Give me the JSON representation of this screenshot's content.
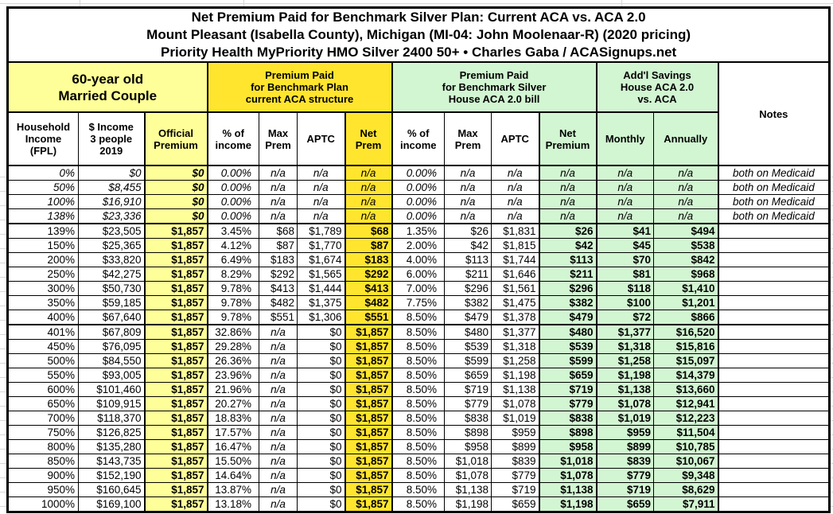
{
  "title": {
    "line1": "Net Premium Paid for Benchmark Silver Plan: Current ACA vs. ACA 2.0",
    "line2": "Mount Pleasant (Isabella County), Michigan (MI-04: John Moolenaar-R) (2020 pricing)",
    "line3": "Priority Health MyPriority HMO Silver 2400 50+ • Charles Gaba / ACASignups.net"
  },
  "groups": {
    "household": "60-year old\nMarried Couple",
    "aca_current": "Premium Paid\nfor Benchmark Plan\ncurrent ACA structure",
    "aca_20": "Premium Paid\nfor Benchmark Silver\nHouse ACA 2.0 bill",
    "savings": "Add'l Savings\nHouse ACA 2.0\nvs. ACA",
    "notes": "Notes"
  },
  "columns": [
    {
      "key": "fpl",
      "label": "Household\nIncome\n(FPL)"
    },
    {
      "key": "income",
      "label": "$ Income\n3 people\n2019"
    },
    {
      "key": "official_premium",
      "label": "Official\nPremium"
    },
    {
      "key": "aca_pct_income",
      "label": "% of\nincome"
    },
    {
      "key": "aca_max_prem",
      "label": "Max\nPrem"
    },
    {
      "key": "aca_aptc",
      "label": "APTC"
    },
    {
      "key": "aca_net_prem",
      "label": "Net\nPrem"
    },
    {
      "key": "aca20_pct_income",
      "label": "% of\nincome"
    },
    {
      "key": "aca20_max_prem",
      "label": "Max\nPrem"
    },
    {
      "key": "aca20_aptc",
      "label": "APTC"
    },
    {
      "key": "aca20_net_premium",
      "label": "Net\nPremium"
    },
    {
      "key": "savings_monthly",
      "label": "Monthly"
    },
    {
      "key": "savings_annually",
      "label": "Annually"
    },
    {
      "key": "notes",
      "label": "Notes"
    }
  ],
  "rows": [
    {
      "medicaid": true,
      "cells": [
        "0%",
        "$0",
        "$0",
        "0.00%",
        "n/a",
        "n/a",
        "n/a",
        "0.00%",
        "n/a",
        "n/a",
        "n/a",
        "n/a",
        "n/a",
        "both on Medicaid"
      ]
    },
    {
      "medicaid": true,
      "cells": [
        "50%",
        "$8,455",
        "$0",
        "0.00%",
        "n/a",
        "n/a",
        "n/a",
        "0.00%",
        "n/a",
        "n/a",
        "n/a",
        "n/a",
        "n/a",
        "both on Medicaid"
      ]
    },
    {
      "medicaid": true,
      "cells": [
        "100%",
        "$16,910",
        "$0",
        "0.00%",
        "n/a",
        "n/a",
        "n/a",
        "0.00%",
        "n/a",
        "n/a",
        "n/a",
        "n/a",
        "n/a",
        "both on Medicaid"
      ]
    },
    {
      "medicaid": true,
      "cells": [
        "138%",
        "$23,336",
        "$0",
        "0.00%",
        "n/a",
        "n/a",
        "n/a",
        "0.00%",
        "n/a",
        "n/a",
        "n/a",
        "n/a",
        "n/a",
        "both on Medicaid"
      ]
    },
    {
      "medicaid": false,
      "cells": [
        "139%",
        "$23,505",
        "$1,857",
        "3.45%",
        "$68",
        "$1,789",
        "$68",
        "1.35%",
        "$26",
        "$1,831",
        "$26",
        "$41",
        "$494",
        ""
      ]
    },
    {
      "medicaid": false,
      "cells": [
        "150%",
        "$25,365",
        "$1,857",
        "4.12%",
        "$87",
        "$1,770",
        "$87",
        "2.00%",
        "$42",
        "$1,815",
        "$42",
        "$45",
        "$538",
        ""
      ]
    },
    {
      "medicaid": false,
      "cells": [
        "200%",
        "$33,820",
        "$1,857",
        "6.49%",
        "$183",
        "$1,674",
        "$183",
        "4.00%",
        "$113",
        "$1,744",
        "$113",
        "$70",
        "$842",
        ""
      ]
    },
    {
      "medicaid": false,
      "cells": [
        "250%",
        "$42,275",
        "$1,857",
        "8.29%",
        "$292",
        "$1,565",
        "$292",
        "6.00%",
        "$211",
        "$1,646",
        "$211",
        "$81",
        "$968",
        ""
      ]
    },
    {
      "medicaid": false,
      "cells": [
        "300%",
        "$50,730",
        "$1,857",
        "9.78%",
        "$413",
        "$1,444",
        "$413",
        "7.00%",
        "$296",
        "$1,561",
        "$296",
        "$118",
        "$1,410",
        ""
      ]
    },
    {
      "medicaid": false,
      "cells": [
        "350%",
        "$59,185",
        "$1,857",
        "9.78%",
        "$482",
        "$1,375",
        "$482",
        "7.75%",
        "$382",
        "$1,475",
        "$382",
        "$100",
        "$1,201",
        ""
      ]
    },
    {
      "medicaid": false,
      "cells": [
        "400%",
        "$67,640",
        "$1,857",
        "9.78%",
        "$551",
        "$1,306",
        "$551",
        "8.50%",
        "$479",
        "$1,378",
        "$479",
        "$72",
        "$866",
        ""
      ]
    },
    {
      "medicaid": false,
      "cells": [
        "401%",
        "$67,809",
        "$1,857",
        "32.86%",
        "n/a",
        "$0",
        "$1,857",
        "8.50%",
        "$480",
        "$1,377",
        "$480",
        "$1,377",
        "$16,520",
        ""
      ]
    },
    {
      "medicaid": false,
      "cells": [
        "450%",
        "$76,095",
        "$1,857",
        "29.28%",
        "n/a",
        "$0",
        "$1,857",
        "8.50%",
        "$539",
        "$1,318",
        "$539",
        "$1,318",
        "$15,816",
        ""
      ]
    },
    {
      "medicaid": false,
      "cells": [
        "500%",
        "$84,550",
        "$1,857",
        "26.36%",
        "n/a",
        "$0",
        "$1,857",
        "8.50%",
        "$599",
        "$1,258",
        "$599",
        "$1,258",
        "$15,097",
        ""
      ]
    },
    {
      "medicaid": false,
      "cells": [
        "550%",
        "$93,005",
        "$1,857",
        "23.96%",
        "n/a",
        "$0",
        "$1,857",
        "8.50%",
        "$659",
        "$1,198",
        "$659",
        "$1,198",
        "$14,379",
        ""
      ]
    },
    {
      "medicaid": false,
      "cells": [
        "600%",
        "$101,460",
        "$1,857",
        "21.96%",
        "n/a",
        "$0",
        "$1,857",
        "8.50%",
        "$719",
        "$1,138",
        "$719",
        "$1,138",
        "$13,660",
        ""
      ]
    },
    {
      "medicaid": false,
      "cells": [
        "650%",
        "$109,915",
        "$1,857",
        "20.27%",
        "n/a",
        "$0",
        "$1,857",
        "8.50%",
        "$779",
        "$1,078",
        "$779",
        "$1,078",
        "$12,941",
        ""
      ]
    },
    {
      "medicaid": false,
      "cells": [
        "700%",
        "$118,370",
        "$1,857",
        "18.83%",
        "n/a",
        "$0",
        "$1,857",
        "8.50%",
        "$838",
        "$1,019",
        "$838",
        "$1,019",
        "$12,223",
        ""
      ]
    },
    {
      "medicaid": false,
      "cells": [
        "750%",
        "$126,825",
        "$1,857",
        "17.57%",
        "n/a",
        "$0",
        "$1,857",
        "8.50%",
        "$898",
        "$959",
        "$898",
        "$959",
        "$11,504",
        ""
      ]
    },
    {
      "medicaid": false,
      "cells": [
        "800%",
        "$135,280",
        "$1,857",
        "16.47%",
        "n/a",
        "$0",
        "$1,857",
        "8.50%",
        "$958",
        "$899",
        "$958",
        "$899",
        "$10,785",
        ""
      ]
    },
    {
      "medicaid": false,
      "cells": [
        "850%",
        "$143,735",
        "$1,857",
        "15.50%",
        "n/a",
        "$0",
        "$1,857",
        "8.50%",
        "$1,018",
        "$839",
        "$1,018",
        "$839",
        "$10,067",
        ""
      ]
    },
    {
      "medicaid": false,
      "cells": [
        "900%",
        "$152,190",
        "$1,857",
        "14.64%",
        "n/a",
        "$0",
        "$1,857",
        "8.50%",
        "$1,078",
        "$779",
        "$1,078",
        "$779",
        "$9,348",
        ""
      ]
    },
    {
      "medicaid": false,
      "cells": [
        "950%",
        "$160,645",
        "$1,857",
        "13.87%",
        "n/a",
        "$0",
        "$1,857",
        "8.50%",
        "$1,138",
        "$719",
        "$1,138",
        "$719",
        "$8,629",
        ""
      ]
    },
    {
      "medicaid": false,
      "cells": [
        "1000%",
        "$169,100",
        "$1,857",
        "13.18%",
        "n/a",
        "$0",
        "$1,857",
        "8.50%",
        "$1,198",
        "$659",
        "$1,198",
        "$659",
        "$7,911",
        ""
      ]
    }
  ],
  "colors": {
    "pale_yellow": "#FFFF99",
    "gold": "#FFE52E",
    "light_green": "#D2F5D2",
    "border": "#000000",
    "gridline": "#D8D8D8"
  }
}
